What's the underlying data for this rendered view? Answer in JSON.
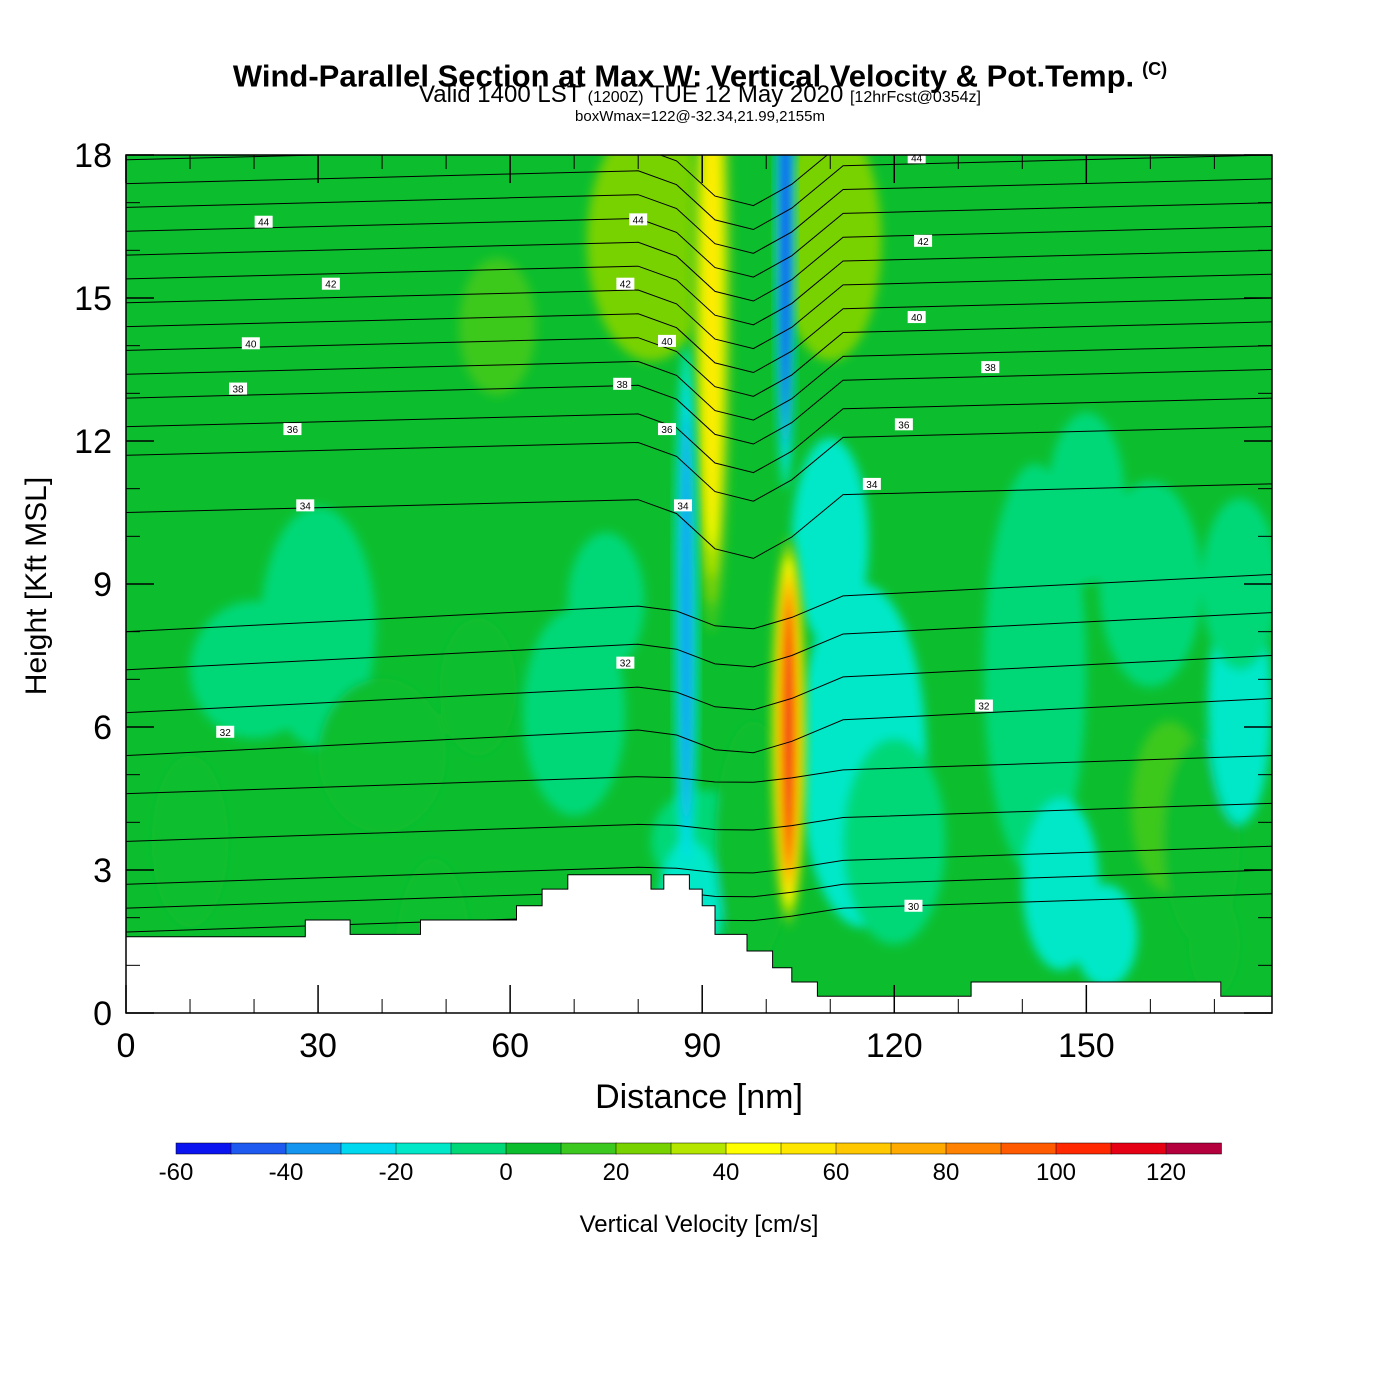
{
  "header": {
    "title": "Wind-Parallel Section at Max W: Vertical Velocity & Pot.Temp.",
    "copyright": "(C)",
    "valid": "Valid 1400 LST",
    "zulu": "(1200Z)",
    "date": "TUE 12 May 2020",
    "forecast": "[12hrFcst@0354z]",
    "boxinfo": "boxWmax=122@-32.34,21.99,2155m"
  },
  "chart_data": {
    "type": "heatmap",
    "xlabel": "Distance [nm]",
    "ylabel": "Height [Kft MSL]",
    "xlim": [
      0,
      179
    ],
    "ylim": [
      0,
      18
    ],
    "xticks": [
      "0",
      "30",
      "60",
      "90",
      "120",
      "150"
    ],
    "xtick_values": [
      0,
      30,
      60,
      90,
      120,
      150
    ],
    "yticks": [
      "0",
      "3",
      "6",
      "9",
      "12",
      "15",
      "18"
    ],
    "ytick_values": [
      0,
      3,
      6,
      9,
      12,
      15,
      18
    ],
    "colorbar": {
      "label": "Vertical Velocity [cm/s]",
      "levels": [
        -60,
        -50,
        -40,
        -30,
        -20,
        -10,
        0,
        10,
        20,
        30,
        40,
        50,
        60,
        70,
        80,
        90,
        100,
        110,
        120,
        130
      ],
      "tick_labels": [
        "-60",
        "-40",
        "-20",
        "0",
        "20",
        "40",
        "60",
        "80",
        "100",
        "120"
      ],
      "tick_values": [
        -60,
        -40,
        -20,
        0,
        20,
        40,
        60,
        80,
        100,
        120
      ],
      "colors": [
        "#0a14f0",
        "#1e5af0",
        "#1496f0",
        "#00d8f0",
        "#00e8c8",
        "#00d878",
        "#0cbe2e",
        "#3cc81e",
        "#78d200",
        "#b4e600",
        "#ffff00",
        "#ffe600",
        "#ffc800",
        "#ffaa00",
        "#ff8200",
        "#ff5a00",
        "#ff2800",
        "#e60014",
        "#b4003c"
      ]
    },
    "features": [
      {
        "name": "updraft",
        "x": 91.5,
        "y_range": [
          8.0,
          18.0
        ],
        "max": 55
      },
      {
        "name": "updraft core",
        "x": 103.5,
        "y_range": [
          1.8,
          10.0
        ],
        "max": 122
      },
      {
        "name": "downdraft",
        "x": 87.5,
        "y_range": [
          2.4,
          14.0
        ],
        "min": -40
      },
      {
        "name": "downdraft",
        "x": 103.0,
        "y_range": [
          11.0,
          18.0
        ],
        "min": -60
      }
    ],
    "potential_temperature_contours": {
      "label_values": [
        "30",
        "32",
        "34",
        "36",
        "38",
        "40",
        "42",
        "44"
      ],
      "labels": [
        {
          "text": "44",
          "x": 21.5,
          "y": 16.6
        },
        {
          "text": "44",
          "x": 80.0,
          "y": 16.65
        },
        {
          "text": "44",
          "x": 123.5,
          "y": 17.95
        },
        {
          "text": "42",
          "x": 32.0,
          "y": 15.3
        },
        {
          "text": "42",
          "x": 78.0,
          "y": 15.3
        },
        {
          "text": "42",
          "x": 124.5,
          "y": 16.2
        },
        {
          "text": "40",
          "x": 19.5,
          "y": 14.05
        },
        {
          "text": "40",
          "x": 84.5,
          "y": 14.1
        },
        {
          "text": "40",
          "x": 123.5,
          "y": 14.6
        },
        {
          "text": "38",
          "x": 17.5,
          "y": 13.1
        },
        {
          "text": "38",
          "x": 77.5,
          "y": 13.2
        },
        {
          "text": "38",
          "x": 135.0,
          "y": 13.55
        },
        {
          "text": "36",
          "x": 26.0,
          "y": 12.25
        },
        {
          "text": "36",
          "x": 84.5,
          "y": 12.25
        },
        {
          "text": "36",
          "x": 121.5,
          "y": 12.35
        },
        {
          "text": "34",
          "x": 28.0,
          "y": 10.65
        },
        {
          "text": "34",
          "x": 87.0,
          "y": 10.65
        },
        {
          "text": "34",
          "x": 116.5,
          "y": 11.1
        },
        {
          "text": "32",
          "x": 15.5,
          "y": 5.9
        },
        {
          "text": "32",
          "x": 78.0,
          "y": 7.35
        },
        {
          "text": "32",
          "x": 134.0,
          "y": 6.45
        },
        {
          "text": "30",
          "x": 123.0,
          "y": 2.25
        }
      ]
    },
    "terrain_kft": [
      [
        0,
        1.6
      ],
      [
        28,
        1.6
      ],
      [
        28,
        1.95
      ],
      [
        35,
        1.95
      ],
      [
        35,
        1.65
      ],
      [
        46,
        1.65
      ],
      [
        46,
        1.95
      ],
      [
        61,
        1.95
      ],
      [
        61,
        2.25
      ],
      [
        65,
        2.25
      ],
      [
        65,
        2.6
      ],
      [
        69,
        2.6
      ],
      [
        69,
        2.9
      ],
      [
        82,
        2.9
      ],
      [
        82,
        2.6
      ],
      [
        84,
        2.6
      ],
      [
        84,
        2.9
      ],
      [
        88,
        2.9
      ],
      [
        88,
        2.6
      ],
      [
        90,
        2.6
      ],
      [
        90,
        2.25
      ],
      [
        92,
        2.25
      ],
      [
        92,
        1.65
      ],
      [
        97,
        1.65
      ],
      [
        97,
        1.3
      ],
      [
        101,
        1.3
      ],
      [
        101,
        0.95
      ],
      [
        104,
        0.95
      ],
      [
        104,
        0.65
      ],
      [
        108,
        0.65
      ],
      [
        108,
        0.35
      ],
      [
        132,
        0.35
      ],
      [
        132,
        0.65
      ],
      [
        171,
        0.65
      ],
      [
        171,
        0.35
      ],
      [
        179,
        0.35
      ]
    ]
  }
}
